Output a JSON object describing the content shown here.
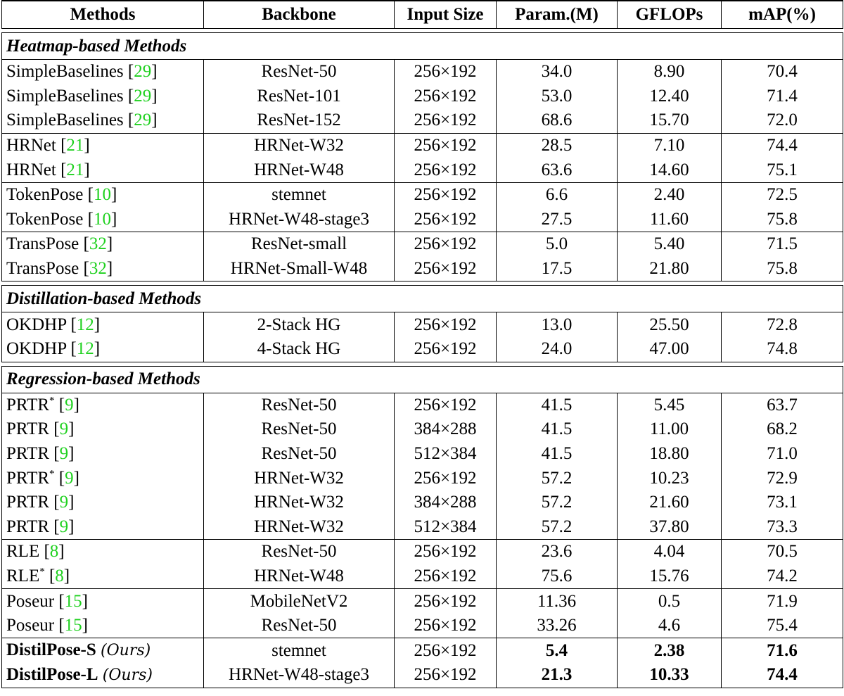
{
  "columns": [
    "Methods",
    "Backbone",
    "Input Size",
    "Param.(M)",
    "GFLOPs",
    "mAP(%)"
  ],
  "sections": [
    {
      "title": "Heatmap-based Methods",
      "groups": [
        [
          {
            "method": "SimpleBaselines",
            "sup": "",
            "cite": "29",
            "backbone": "ResNet-50",
            "input": "256×192",
            "param": "34.0",
            "gflops": "8.90",
            "map": "70.4"
          },
          {
            "method": "SimpleBaselines",
            "sup": "",
            "cite": "29",
            "backbone": "ResNet-101",
            "input": "256×192",
            "param": "53.0",
            "gflops": "12.40",
            "map": "71.4"
          },
          {
            "method": "SimpleBaselines",
            "sup": "",
            "cite": "29",
            "backbone": "ResNet-152",
            "input": "256×192",
            "param": "68.6",
            "gflops": "15.70",
            "map": "72.0"
          }
        ],
        [
          {
            "method": "HRNet",
            "sup": "",
            "cite": "21",
            "backbone": "HRNet-W32",
            "input": "256×192",
            "param": "28.5",
            "gflops": "7.10",
            "map": "74.4"
          },
          {
            "method": "HRNet",
            "sup": "",
            "cite": "21",
            "backbone": "HRNet-W48",
            "input": "256×192",
            "param": "63.6",
            "gflops": "14.60",
            "map": "75.1"
          }
        ],
        [
          {
            "method": "TokenPose",
            "sup": "",
            "cite": "10",
            "backbone": "stemnet",
            "input": "256×192",
            "param": "6.6",
            "gflops": "2.40",
            "map": "72.5"
          },
          {
            "method": "TokenPose",
            "sup": "",
            "cite": "10",
            "backbone": "HRNet-W48-stage3",
            "input": "256×192",
            "param": "27.5",
            "gflops": "11.60",
            "map": "75.8"
          }
        ],
        [
          {
            "method": "TransPose",
            "sup": "",
            "cite": "32",
            "backbone": "ResNet-small",
            "input": "256×192",
            "param": "5.0",
            "gflops": "5.40",
            "map": "71.5"
          },
          {
            "method": "TransPose",
            "sup": "",
            "cite": "32",
            "backbone": "HRNet-Small-W48",
            "input": "256×192",
            "param": "17.5",
            "gflops": "21.80",
            "map": "75.8"
          }
        ]
      ]
    },
    {
      "title": "Distillation-based Methods",
      "groups": [
        [
          {
            "method": "OKDHP",
            "sup": "",
            "cite": "12",
            "backbone": "2-Stack HG",
            "input": "256×192",
            "param": "13.0",
            "gflops": "25.50",
            "map": "72.8"
          },
          {
            "method": "OKDHP",
            "sup": "",
            "cite": "12",
            "backbone": "4-Stack HG",
            "input": "256×192",
            "param": "24.0",
            "gflops": "47.00",
            "map": "74.8"
          }
        ]
      ]
    },
    {
      "title": "Regression-based Methods",
      "groups": [
        [
          {
            "method": "PRTR",
            "sup": "*",
            "cite": "9",
            "backbone": "ResNet-50",
            "input": "256×192",
            "param": "41.5",
            "gflops": "5.45",
            "map": "63.7"
          },
          {
            "method": "PRTR",
            "sup": "",
            "cite": "9",
            "backbone": "ResNet-50",
            "input": "384×288",
            "param": "41.5",
            "gflops": "11.00",
            "map": "68.2"
          },
          {
            "method": "PRTR",
            "sup": "",
            "cite": "9",
            "backbone": "ResNet-50",
            "input": "512×384",
            "param": "41.5",
            "gflops": "18.80",
            "map": "71.0"
          },
          {
            "method": "PRTR",
            "sup": "*",
            "cite": "9",
            "backbone": "HRNet-W32",
            "input": "256×192",
            "param": "57.2",
            "gflops": "10.23",
            "map": "72.9"
          },
          {
            "method": "PRTR",
            "sup": "",
            "cite": "9",
            "backbone": "HRNet-W32",
            "input": "384×288",
            "param": "57.2",
            "gflops": "21.60",
            "map": "73.1"
          },
          {
            "method": "PRTR",
            "sup": "",
            "cite": "9",
            "backbone": "HRNet-W32",
            "input": "512×384",
            "param": "57.2",
            "gflops": "37.80",
            "map": "73.3"
          }
        ],
        [
          {
            "method": "RLE",
            "sup": "",
            "cite": "8",
            "backbone": "ResNet-50",
            "input": "256×192",
            "param": "23.6",
            "gflops": "4.04",
            "map": "70.5"
          },
          {
            "method": "RLE",
            "sup": "*",
            "cite": "8",
            "backbone": "HRNet-W48",
            "input": "256×192",
            "param": "75.6",
            "gflops": "15.76",
            "map": "74.2"
          }
        ],
        [
          {
            "method": "Poseur",
            "sup": "",
            "cite": "15",
            "backbone": "MobileNetV2",
            "input": "256×192",
            "param": "11.36",
            "gflops": "0.5",
            "map": "71.9"
          },
          {
            "method": "Poseur",
            "sup": "",
            "cite": "15",
            "backbone": "ResNet-50",
            "input": "256×192",
            "param": "33.26",
            "gflops": "4.6",
            "map": "75.4"
          }
        ],
        [
          {
            "method": "DistilPose-S",
            "ours": "(Ours)",
            "backbone": "stemnet",
            "input": "256×192",
            "param": "5.4",
            "gflops": "2.38",
            "map": "71.6"
          },
          {
            "method": "DistilPose-L",
            "ours": "(Ours)",
            "backbone": "HRNet-W48-stage3",
            "input": "256×192",
            "param": "21.3",
            "gflops": "10.33",
            "map": "74.4"
          }
        ]
      ]
    }
  ],
  "colors": {
    "citation": "#1fd11f",
    "text": "#000000",
    "background": "#ffffff"
  }
}
